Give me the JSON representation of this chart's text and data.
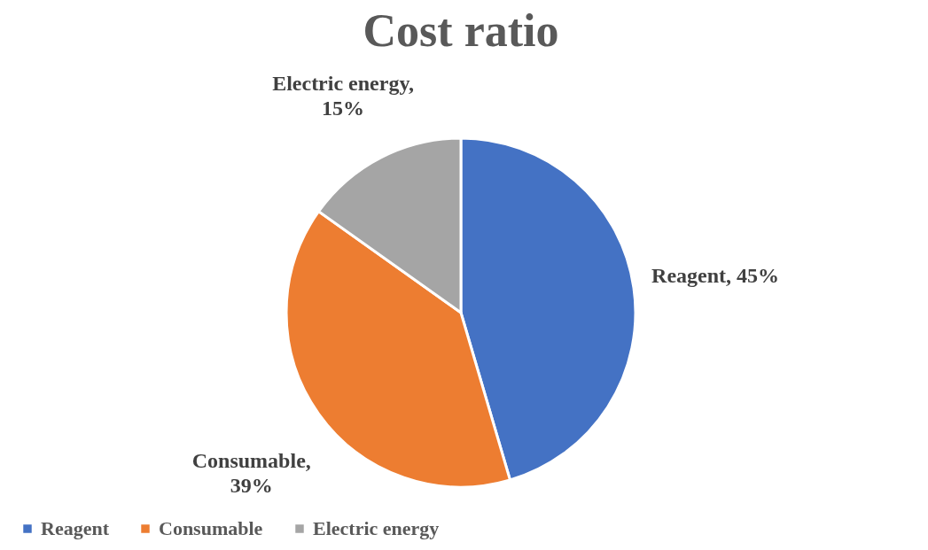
{
  "chart_data": {
    "type": "pie",
    "title": "Cost ratio",
    "categories": [
      "Reagent",
      "Consumable",
      "Electric energy"
    ],
    "values": [
      45,
      39,
      15
    ],
    "colors": [
      "#4472c4",
      "#ed7d31",
      "#a5a5a5"
    ],
    "value_labels": [
      "Reagent, 45%",
      "Consumable, 39%",
      "Electric energy, 15%"
    ],
    "legend": "bottom"
  }
}
